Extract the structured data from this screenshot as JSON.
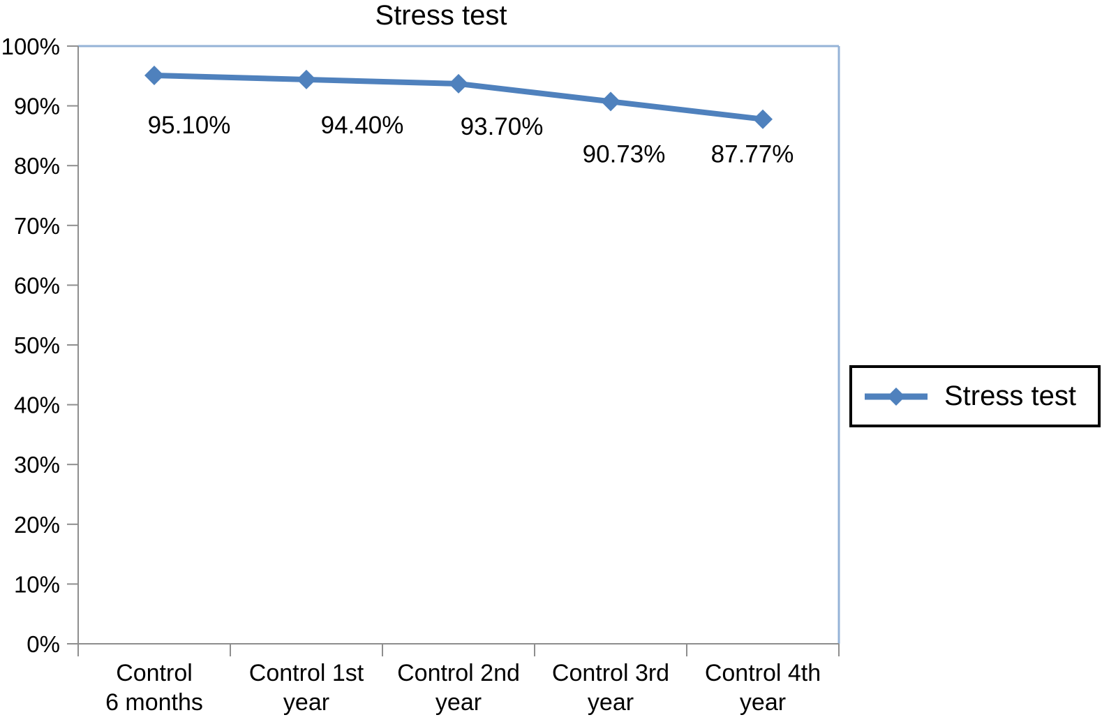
{
  "chart_data": {
    "type": "line",
    "title": "Stress test",
    "categories": [
      "Control\n6 months",
      "Control 1st\nyear",
      "Control 2nd\nyear",
      "Control 3rd\nyear",
      "Control 4th\nyear"
    ],
    "series": [
      {
        "name": "Stress test",
        "values": [
          95.1,
          94.4,
          93.7,
          90.73,
          87.77
        ],
        "data_labels": [
          "95.10%",
          "94.40%",
          "93.70%",
          "90.73%",
          "87.77%"
        ],
        "marker": "diamond"
      }
    ],
    "xlabel": "",
    "ylabel": "",
    "ylim": [
      0,
      100
    ],
    "ytick_step": 10,
    "yticks": [
      "0%",
      "10%",
      "20%",
      "30%",
      "40%",
      "50%",
      "60%",
      "70%",
      "80%",
      "90%",
      "100%"
    ],
    "grid": false,
    "legend": {
      "position": "right",
      "entries": [
        "Stress test"
      ]
    },
    "colors": {
      "series": "#4F81BD",
      "plot_border": "#95B3D7",
      "axis": "#8E8E8E",
      "text": "#000000",
      "legend_border": "#000000",
      "background": "#FFFFFF"
    }
  }
}
